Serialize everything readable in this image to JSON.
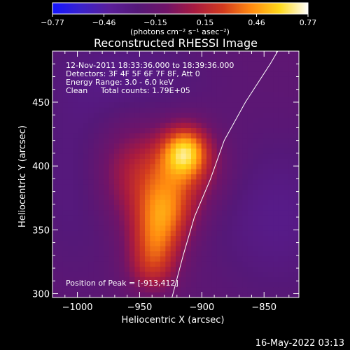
{
  "chart_data": {
    "type": "heatmap",
    "title": "Reconstructed RHESSI Image",
    "xlabel": "Heliocentric X (arcsec)",
    "ylabel": "Heliocentric Y (arcsec)",
    "xlim": [
      -1020,
      -822
    ],
    "ylim": [
      297,
      490
    ],
    "x_ticks": [
      -1000,
      -950,
      -900,
      -850
    ],
    "x_tick_labels": [
      "−1000",
      "−950",
      "−900",
      "−850"
    ],
    "y_ticks": [
      300,
      350,
      400,
      450
    ],
    "y_tick_labels": [
      "300",
      "350",
      "400",
      "450"
    ],
    "colorbar": {
      "range": [
        -0.77,
        0.77
      ],
      "ticks": [
        -0.77,
        -0.46,
        -0.15,
        0.15,
        0.46,
        0.77
      ],
      "tick_labels": [
        "−0.77",
        "−0.46",
        "−0.15",
        "0.15",
        "0.46",
        "0.77"
      ],
      "unit_label": "(photons cm⁻² s⁻¹ asec⁻²)"
    },
    "annotations": {
      "time_range": "12-Nov-2011 18:33:36.000 to 18:39:36.000",
      "detectors": "Detectors: 3F 4F 5F 6F 7F 8F, Att 0",
      "energy": "Energy Range: 3.0 - 6.0 keV",
      "clean": "Clean",
      "total_counts": "Total counts: 1.79E+05",
      "peak": "Position of Peak = [-913,412]"
    },
    "peak_position": [
      -913,
      412
    ],
    "sources": [
      {
        "x": -913,
        "y": 412,
        "sx": 13,
        "sy": 14,
        "amp": 0.62
      },
      {
        "x": -920,
        "y": 395,
        "sx": 25,
        "sy": 20,
        "amp": 0.34
      },
      {
        "x": -930,
        "y": 365,
        "sx": 17,
        "sy": 17,
        "amp": 0.44
      },
      {
        "x": -937,
        "y": 340,
        "sx": 15,
        "sy": 16,
        "amp": 0.38
      },
      {
        "x": -940,
        "y": 318,
        "sx": 14,
        "sy": 14,
        "amp": 0.26
      },
      {
        "x": -958,
        "y": 395,
        "sx": 22,
        "sy": 28,
        "amp": 0.22
      },
      {
        "x": -1000,
        "y": 390,
        "sx": 25,
        "sy": 50,
        "amp": -0.1
      },
      {
        "x": -840,
        "y": 360,
        "sx": 35,
        "sy": 40,
        "amp": -0.14
      },
      {
        "x": -960,
        "y": 470,
        "sx": 40,
        "sy": 25,
        "amp": -0.12
      }
    ],
    "background_level": -0.2,
    "limb_curve": [
      [
        -924,
        297
      ],
      [
        -915,
        330
      ],
      [
        -906,
        360
      ],
      [
        -893,
        390
      ],
      [
        -882,
        420
      ],
      [
        -865,
        450
      ],
      [
        -845,
        480
      ],
      [
        -839,
        490
      ]
    ],
    "grid": false
  },
  "colors": {
    "background": "#000000",
    "foreground": "#ffffff",
    "colormap": [
      "#1414ff",
      "#3a22cc",
      "#5a1e9a",
      "#551878",
      "#701468",
      "#a81a40",
      "#d23a1e",
      "#ff8a10",
      "#ffd81a",
      "#ffffff"
    ]
  },
  "footer": {
    "timestamp": "16-May-2022 03:13"
  }
}
